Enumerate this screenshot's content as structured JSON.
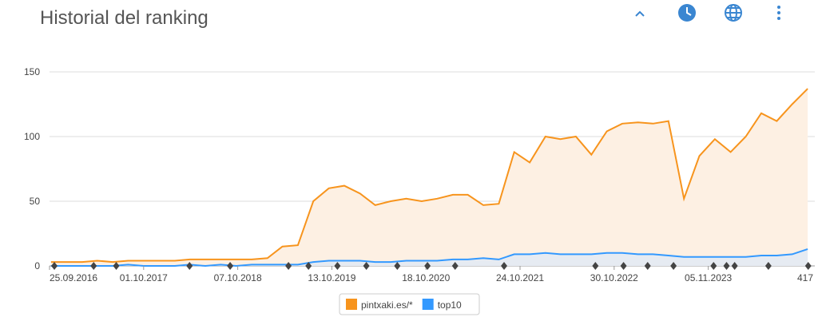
{
  "title": "Historial del ranking",
  "chart_data": {
    "type": "line",
    "x": [
      "01.10.2016",
      "01.12.2016",
      "01.02.2017",
      "01.04.2017",
      "01.06.2017",
      "01.08.2017",
      "01.10.2017",
      "01.12.2017",
      "01.02.2018",
      "01.04.2018",
      "01.06.2018",
      "01.08.2018",
      "01.10.2018",
      "01.12.2018",
      "01.02.2019",
      "01.04.2019",
      "01.06.2019",
      "01.08.2019",
      "01.10.2019",
      "01.12.2019",
      "01.02.2020",
      "01.04.2020",
      "01.06.2020",
      "01.08.2020",
      "01.10.2020",
      "01.12.2020",
      "01.02.2021",
      "01.04.2021",
      "01.06.2021",
      "01.08.2021",
      "01.10.2021",
      "01.12.2021",
      "01.02.2022",
      "01.04.2022",
      "01.06.2022",
      "01.08.2022",
      "01.10.2022",
      "01.12.2022",
      "01.02.2023",
      "01.04.2023",
      "01.06.2023",
      "01.08.2023",
      "01.10.2023",
      "01.12.2023",
      "01.02.2024",
      "01.04.2024",
      "01.06.2024",
      "01.08.2024",
      "01.10.2024",
      "01.12.2024"
    ],
    "series": [
      {
        "name": "pintxaki.es/*",
        "color": "#f7941d",
        "fill": "#fdf0e3",
        "values": [
          3,
          3,
          3,
          4,
          3,
          4,
          4,
          4,
          4,
          5,
          5,
          5,
          5,
          5,
          6,
          15,
          16,
          50,
          60,
          62,
          56,
          47,
          50,
          52,
          50,
          52,
          55,
          55,
          47,
          48,
          88,
          80,
          100,
          98,
          100,
          86,
          104,
          110,
          111,
          110,
          112,
          52,
          85,
          98,
          88,
          100,
          118,
          112,
          125,
          137
        ]
      },
      {
        "name": "top10",
        "color": "#3399ff",
        "fill": "#e6ebf2",
        "values": [
          0,
          0,
          0,
          0,
          0,
          1,
          0,
          0,
          0,
          1,
          0,
          1,
          0,
          1,
          1,
          1,
          1,
          3,
          4,
          4,
          4,
          3,
          3,
          4,
          4,
          4,
          5,
          5,
          6,
          5,
          9,
          9,
          10,
          9,
          9,
          9,
          10,
          10,
          9,
          9,
          8,
          7,
          7,
          7,
          7,
          7,
          8,
          8,
          9,
          13
        ]
      }
    ],
    "xlim": [
      "25.09.2016",
      "29.12.2024"
    ],
    "xticks": [
      "25.09.2016",
      "01.10.2017",
      "07.10.2018",
      "13.10.2019",
      "18.10.2020",
      "24.10.2021",
      "30.10.2022",
      "05.11.2023"
    ],
    "end_label": "417",
    "ylim": [
      0,
      150
    ],
    "yticks": [
      0,
      50,
      100,
      150
    ],
    "grid": true,
    "events": [
      "14.10.2016",
      "18.03.2017",
      "15.06.2017",
      "31.03.2018",
      "07.09.2018",
      "25.04.2019",
      "13.07.2019",
      "04.11.2019",
      "26.02.2020",
      "27.06.2020",
      "24.10.2020",
      "10.02.2021",
      "22.08.2021",
      "17.08.2022",
      "06.12.2022",
      "11.03.2023",
      "21.06.2023",
      "26.11.2023",
      "16.01.2024",
      "17.02.2024",
      "29.06.2024",
      "03.12.2024"
    ],
    "legend": "bottom"
  }
}
